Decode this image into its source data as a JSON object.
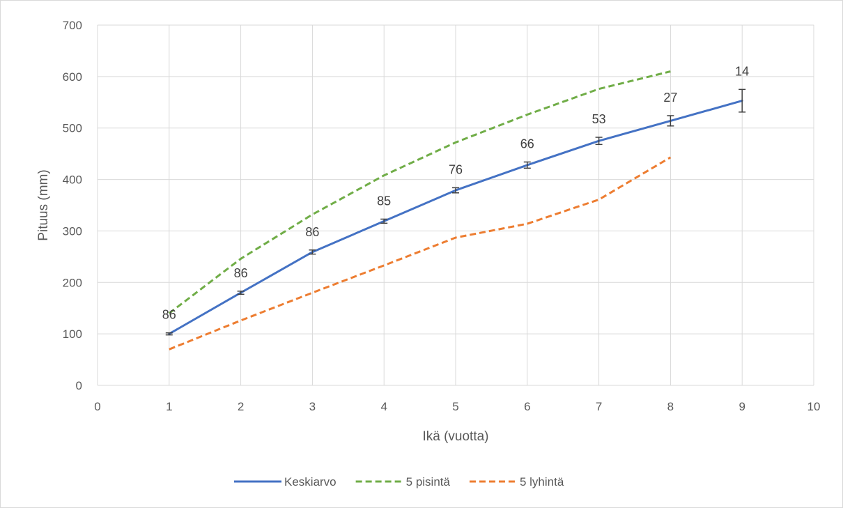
{
  "chart_data": {
    "type": "line",
    "title": "",
    "xlabel": "Ikä (vuotta)",
    "ylabel": "Pituus (mm)",
    "xlim": [
      0,
      10
    ],
    "ylim": [
      0,
      700
    ],
    "xticks": [
      "0",
      "1",
      "2",
      "3",
      "4",
      "5",
      "6",
      "7",
      "8",
      "9",
      "10"
    ],
    "yticks": [
      "0",
      "100",
      "200",
      "300",
      "400",
      "500",
      "600",
      "700"
    ],
    "grid": true,
    "legend_position": "bottom",
    "series": [
      {
        "name": "Keskiarvo",
        "color": "#4472C4",
        "style": "solid",
        "x": [
          1,
          2,
          3,
          4,
          5,
          6,
          7,
          8,
          9
        ],
        "y": [
          100,
          180,
          259,
          319,
          379,
          428,
          475,
          514,
          553
        ],
        "error": [
          2,
          3,
          4,
          4,
          5,
          6,
          7,
          10,
          22
        ],
        "data_labels": [
          "86",
          "86",
          "86",
          "85",
          "76",
          "66",
          "53",
          "27",
          "14"
        ]
      },
      {
        "name": "5 pisintä",
        "color": "#70AD47",
        "style": "dashed",
        "x": [
          1,
          2,
          3,
          4,
          5,
          6,
          7,
          8
        ],
        "y": [
          140,
          246,
          332,
          408,
          472,
          526,
          576,
          610
        ]
      },
      {
        "name": "5 lyhintä",
        "color": "#ED7D31",
        "style": "dashed",
        "x": [
          1,
          2,
          3,
          4,
          5,
          6,
          7,
          8
        ],
        "y": [
          70,
          126,
          180,
          233,
          287,
          314,
          361,
          443
        ]
      }
    ]
  }
}
